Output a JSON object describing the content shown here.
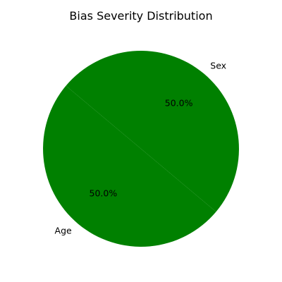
{
  "chart_data": {
    "type": "pie",
    "title": "Bias Severity Distribution",
    "slices": [
      {
        "label": "Age",
        "value": 50.0,
        "percent_label": "50.0%",
        "color": "#008000"
      },
      {
        "label": "Sex",
        "value": 50.0,
        "percent_label": "50.0%",
        "color": "#008000"
      }
    ],
    "start_angle_deg": 140,
    "direction": "counterclockwise"
  }
}
